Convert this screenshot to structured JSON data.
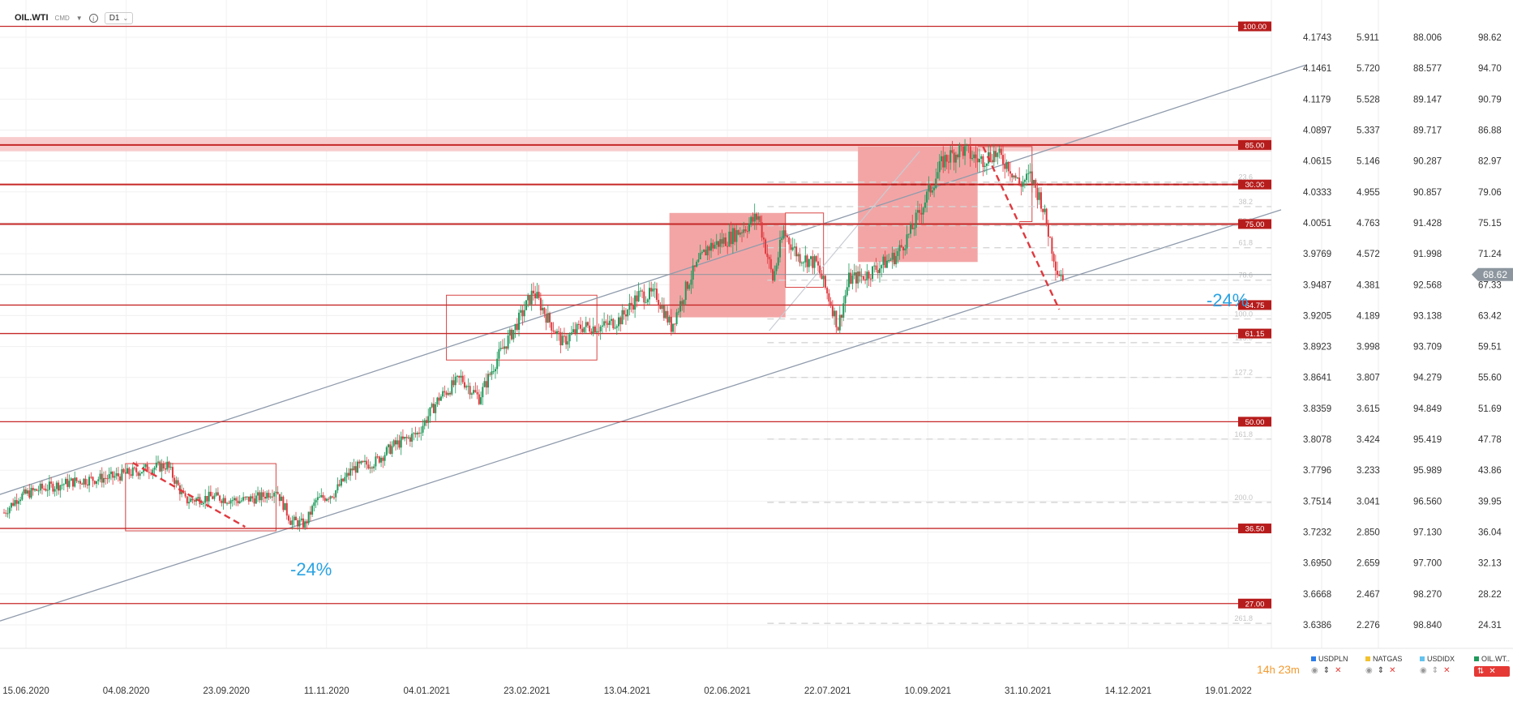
{
  "toolbar": {
    "symbol": "OIL.WTI",
    "market": "CMD",
    "timeframe": "D1"
  },
  "timer": {
    "hours": "14",
    "hours_unit": "h",
    "minutes": "23",
    "minutes_unit": "m"
  },
  "colors": {
    "up": "#1f9a5b",
    "down": "#e0393e",
    "level_line": "#c62828",
    "channel": "#8f9bac",
    "zone": "#f3a5a5",
    "annotation": "#29a3e3",
    "current_price": "#8d969e"
  },
  "chart_data": {
    "type": "candlestick",
    "title": "",
    "x_axis": {
      "tick_labels": [
        "15.06.2020",
        "04.08.2020",
        "23.09.2020",
        "11.11.2020",
        "04.01.2021",
        "23.02.2021",
        "13.04.2021",
        "02.06.2021",
        "22.07.2021",
        "10.09.2021",
        "31.10.2021",
        "14.12.2021",
        "19.01.2022"
      ]
    },
    "y_axes": [
      {
        "name": "primary",
        "values": [
          98.62,
          94.7,
          90.79,
          86.88,
          82.97,
          79.06,
          75.15,
          71.24,
          67.33,
          63.42,
          59.51,
          55.6,
          51.69,
          47.78,
          43.86,
          39.95,
          36.04,
          32.13,
          28.22,
          24.31
        ]
      },
      {
        "name": "USDIDX",
        "values": [
          "88.006",
          "88.577",
          "89.147",
          "89.717",
          "90.287",
          "90.857",
          "91.428",
          "91.998",
          "92.568",
          "93.138",
          "93.709",
          "94.279",
          "94.849",
          "95.419",
          "95.989",
          "96.560",
          "97.130",
          "97.700",
          "98.270",
          "98.840"
        ]
      },
      {
        "name": "NATGAS",
        "values": [
          "5.911",
          "5.720",
          "5.528",
          "5.337",
          "5.146",
          "4.955",
          "4.763",
          "4.572",
          "4.381",
          "4.189",
          "3.998",
          "3.807",
          "3.615",
          "3.424",
          "3.233",
          "3.041",
          "2.850",
          "2.659",
          "2.467",
          "2.276"
        ]
      },
      {
        "name": "USDPLN",
        "values": [
          "4.1743",
          "4.1461",
          "4.1179",
          "4.0897",
          "4.0615",
          "4.0333",
          "4.0051",
          "3.9769",
          "3.9487",
          "3.9205",
          "3.8923",
          "3.8641",
          "3.8359",
          "3.8078",
          "3.7796",
          "3.7514",
          "3.7232",
          "3.6950",
          "3.6668",
          "3.6386"
        ]
      }
    ],
    "y_range": [
      22.5,
      100.4
    ],
    "current_price": "68.62",
    "horizontal_levels": [
      {
        "value": 100.0,
        "label": "100.00"
      },
      {
        "value": 85.0,
        "label": "85.00"
      },
      {
        "value": 80.0,
        "label": "80.00"
      },
      {
        "value": 75.0,
        "label": "75.00"
      },
      {
        "value": 64.75,
        "label": "64.75"
      },
      {
        "value": 61.15,
        "label": "61.15"
      },
      {
        "value": 50.0,
        "label": "50.00"
      },
      {
        "value": 36.5,
        "label": "36.50"
      },
      {
        "value": 27.0,
        "label": "27.00"
      }
    ],
    "fibonacci_levels": [
      {
        "value": 85.0,
        "label": ""
      },
      {
        "value": 80.3,
        "label": "23.6"
      },
      {
        "value": 77.2,
        "label": "38.2"
      },
      {
        "value": 74.8,
        "label": "50.0"
      },
      {
        "value": 72.0,
        "label": "61.8"
      },
      {
        "value": 67.9,
        "label": "78.6"
      },
      {
        "value": 63.0,
        "label": "100.0"
      },
      {
        "value": 60.0,
        "label": "113.0"
      },
      {
        "value": 55.6,
        "label": "127.2"
      },
      {
        "value": 47.8,
        "label": "161.8"
      },
      {
        "value": 39.8,
        "label": "200.0"
      },
      {
        "value": 24.5,
        "label": "261.8"
      }
    ],
    "annotations": [
      {
        "text": "-24%"
      },
      {
        "text": "-24%"
      }
    ],
    "series": [
      {
        "name": "OIL.WTI",
        "anchors": [
          [
            0,
            38.5
          ],
          [
            8,
            40.5
          ],
          [
            20,
            41.5
          ],
          [
            40,
            42.5
          ],
          [
            60,
            43
          ],
          [
            78,
            44
          ],
          [
            90,
            44.5
          ],
          [
            100,
            40
          ],
          [
            115,
            40.5
          ],
          [
            130,
            40
          ],
          [
            142,
            40.5
          ],
          [
            150,
            41.5
          ],
          [
            158,
            37.5
          ],
          [
            166,
            37
          ],
          [
            172,
            40
          ],
          [
            182,
            41
          ],
          [
            192,
            44
          ],
          [
            205,
            45
          ],
          [
            215,
            47
          ],
          [
            228,
            48.5
          ],
          [
            240,
            53
          ],
          [
            252,
            55.5
          ],
          [
            262,
            53
          ],
          [
            272,
            58
          ],
          [
            282,
            62
          ],
          [
            292,
            66.5
          ],
          [
            300,
            63
          ],
          [
            308,
            60
          ],
          [
            318,
            62
          ],
          [
            330,
            62
          ],
          [
            340,
            63
          ],
          [
            350,
            66
          ],
          [
            360,
            66
          ],
          [
            368,
            62
          ],
          [
            378,
            68
          ],
          [
            388,
            72
          ],
          [
            398,
            73
          ],
          [
            408,
            74.5
          ],
          [
            416,
            76
          ],
          [
            424,
            68
          ],
          [
            430,
            74
          ],
          [
            438,
            71
          ],
          [
            448,
            70
          ],
          [
            456,
            65
          ],
          [
            460,
            62
          ],
          [
            466,
            68
          ],
          [
            475,
            68.5
          ],
          [
            485,
            70
          ],
          [
            492,
            71
          ],
          [
            500,
            74
          ],
          [
            508,
            78
          ],
          [
            518,
            83
          ],
          [
            528,
            84.5
          ],
          [
            538,
            83
          ],
          [
            546,
            84
          ],
          [
            554,
            82.5
          ],
          [
            560,
            80
          ],
          [
            566,
            81
          ],
          [
            572,
            78
          ],
          [
            578,
            72
          ],
          [
            581,
            69
          ],
          [
            584,
            68.5
          ]
        ]
      },
      {
        "name": "USDPLN",
        "marker": "square",
        "color": "#2c7de8"
      },
      {
        "name": "NATGAS",
        "marker": "square",
        "color": "#f2c230"
      },
      {
        "name": "USDIDX",
        "marker": "square",
        "color": "#64c3ee"
      },
      {
        "name": "OIL.WT..",
        "marker": "square",
        "color": "#1f9a5b"
      }
    ],
    "grid": true,
    "legend_placement": "bottom-right"
  }
}
